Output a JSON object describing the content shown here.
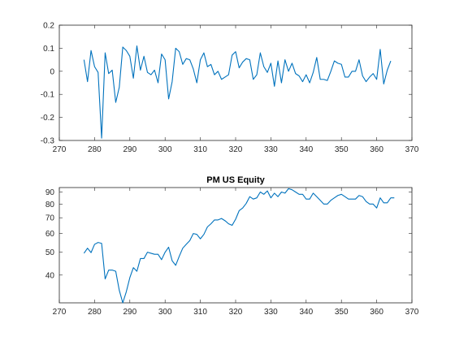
{
  "figure": {
    "background": "#ffffff",
    "axis_color": "#262626",
    "line_color": "#0072bd"
  },
  "chart_data": [
    {
      "type": "line",
      "title": "",
      "xlabel": "",
      "ylabel": "",
      "xlim": [
        270,
        370
      ],
      "ylim": [
        -0.3,
        0.2
      ],
      "xticks": [
        270,
        280,
        290,
        300,
        310,
        320,
        330,
        340,
        350,
        360,
        370
      ],
      "yticks": [
        -0.3,
        -0.2,
        -0.1,
        0,
        0.1,
        0.2
      ],
      "ytick_labels": [
        "-0.3",
        "-0.2",
        "-0.1",
        "0",
        "0.1",
        "0.2"
      ],
      "grid": false,
      "series": [
        {
          "color": "#0072bd",
          "x": [
            277,
            278,
            279,
            280,
            281,
            282,
            283,
            284,
            285,
            286,
            287,
            288,
            289,
            290,
            291,
            292,
            293,
            294,
            295,
            296,
            297,
            298,
            299,
            300,
            301,
            302,
            303,
            304,
            305,
            306,
            307,
            308,
            309,
            310,
            311,
            312,
            313,
            314,
            315,
            316,
            317,
            318,
            319,
            320,
            321,
            322,
            323,
            324,
            325,
            326,
            327,
            328,
            329,
            330,
            331,
            332,
            333,
            334,
            335,
            336,
            337,
            338,
            339,
            340,
            341,
            342,
            343,
            344,
            345,
            346,
            347,
            348,
            349,
            350,
            351,
            352,
            353,
            354,
            355,
            356,
            357,
            358,
            359,
            360,
            361,
            362,
            363,
            364
          ],
          "y": [
            0.05,
            -0.045,
            0.09,
            0.02,
            -0.005,
            -0.29,
            0.08,
            -0.01,
            0.005,
            -0.135,
            -0.07,
            0.105,
            0.09,
            0.065,
            -0.03,
            0.11,
            0.005,
            0.065,
            -0.005,
            -0.015,
            0.005,
            -0.05,
            0.075,
            0.05,
            -0.12,
            -0.045,
            0.1,
            0.085,
            0.03,
            0.055,
            0.05,
            0.01,
            -0.05,
            0.05,
            0.08,
            0.02,
            0.03,
            -0.015,
            0,
            -0.035,
            -0.025,
            -0.015,
            0.07,
            0.085,
            0.015,
            0.04,
            0.055,
            0.05,
            -0.035,
            -0.015,
            0.08,
            0.02,
            -0.005,
            0.035,
            -0.065,
            0.045,
            -0.05,
            0.05,
            0,
            0.035,
            -0.01,
            -0.02,
            -0.045,
            -0.015,
            -0.05,
            -0.005,
            0.06,
            -0.035,
            -0.035,
            -0.04,
            0,
            0.045,
            0.035,
            0.03,
            -0.025,
            -0.025,
            0,
            0,
            0.05,
            -0.02,
            -0.045,
            -0.025,
            -0.01,
            -0.035,
            0.095,
            -0.055,
            0.005,
            0.045
          ]
        }
      ]
    },
    {
      "type": "line",
      "title": "PM US Equity",
      "xlabel": "",
      "ylabel": "",
      "xlim": [
        270,
        370
      ],
      "ylim": [
        30.5,
        94
      ],
      "yscale": "log",
      "xticks": [
        270,
        280,
        290,
        300,
        310,
        320,
        330,
        340,
        350,
        360,
        370
      ],
      "yticks": [
        40,
        50,
        60,
        70,
        80,
        90
      ],
      "ytick_labels": [
        "40",
        "50",
        "60",
        "70",
        "80",
        "90"
      ],
      "grid": false,
      "series": [
        {
          "color": "#0072bd",
          "x": [
            277,
            278,
            279,
            280,
            281,
            282,
            283,
            284,
            285,
            286,
            287,
            288,
            289,
            290,
            291,
            292,
            293,
            294,
            295,
            296,
            297,
            298,
            299,
            300,
            301,
            302,
            303,
            304,
            305,
            306,
            307,
            308,
            309,
            310,
            311,
            312,
            313,
            314,
            315,
            316,
            317,
            318,
            319,
            320,
            321,
            322,
            323,
            324,
            325,
            326,
            327,
            328,
            329,
            330,
            331,
            332,
            333,
            334,
            335,
            336,
            337,
            338,
            339,
            340,
            341,
            342,
            343,
            344,
            345,
            346,
            347,
            348,
            349,
            350,
            351,
            352,
            353,
            354,
            355,
            356,
            357,
            358,
            359,
            360,
            361,
            362,
            363,
            364,
            365
          ],
          "y": [
            49.5,
            52,
            49.8,
            54,
            55,
            54.5,
            38.5,
            42,
            42,
            41.5,
            34.5,
            30.5,
            34,
            39,
            43,
            41.5,
            47,
            47,
            50,
            49.5,
            49,
            49,
            46.5,
            50,
            52.5,
            46,
            44,
            48,
            52,
            54,
            56,
            60,
            59.5,
            57,
            59.5,
            64,
            66,
            68.5,
            68.5,
            69.5,
            68,
            66,
            65,
            69,
            75,
            77,
            80.5,
            86,
            84,
            85,
            90,
            88,
            91,
            85,
            89,
            86,
            90,
            89,
            93,
            92,
            90,
            88,
            88,
            84,
            84,
            89,
            86,
            83,
            80,
            80,
            83,
            85,
            87,
            88,
            86,
            84,
            84,
            84,
            87,
            86,
            82,
            80,
            80,
            77,
            85,
            81,
            81,
            85,
            85
          ]
        }
      ]
    }
  ]
}
